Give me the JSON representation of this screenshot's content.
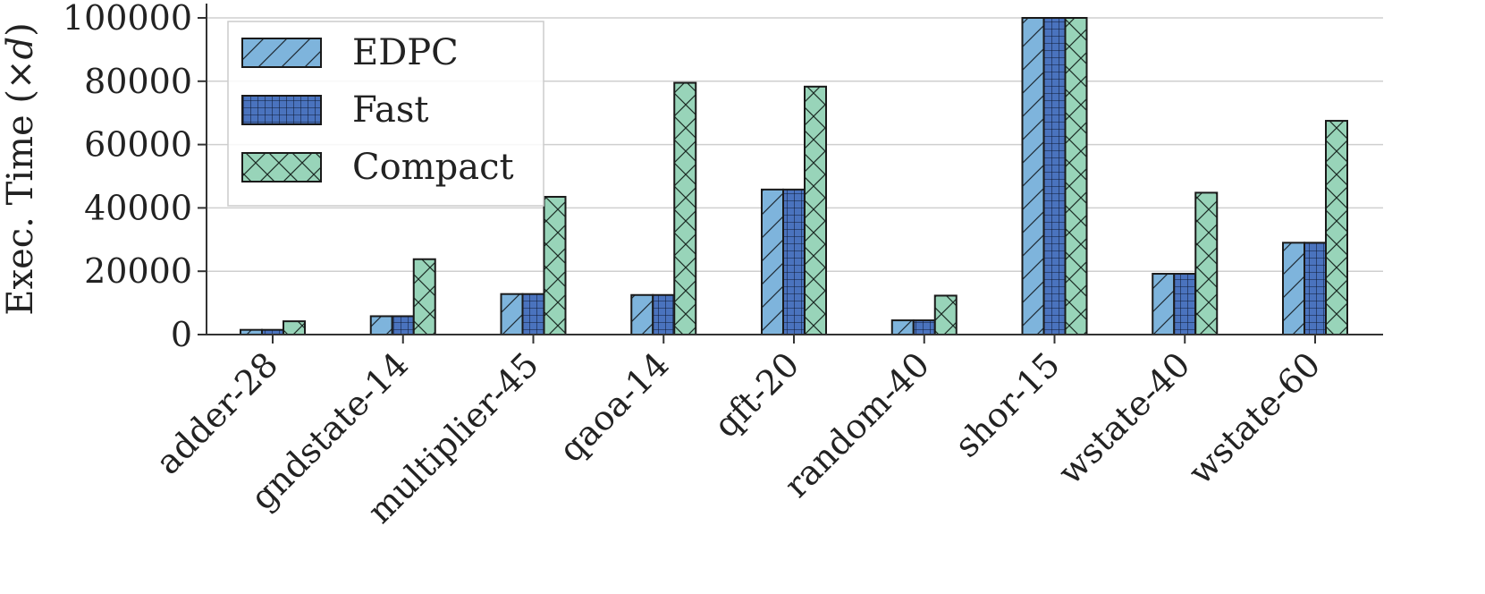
{
  "chart_data": {
    "type": "bar",
    "ylabel_prefix": "Exec. Time (×",
    "ylabel_var": "d",
    "ylabel_suffix": ")",
    "xlabel": "",
    "ylim": [
      0,
      100000
    ],
    "yticks": [
      0,
      20000,
      40000,
      60000,
      80000,
      100000
    ],
    "ytick_labels": [
      "0",
      "20000",
      "40000",
      "60000",
      "80000",
      "100000"
    ],
    "grid": true,
    "legend_position": "top-left",
    "categories": [
      "adder-28",
      "gndstate-14",
      "multiplier-45",
      "qaoa-14",
      "qft-20",
      "random-40",
      "shor-15",
      "wstate-40",
      "wstate-60"
    ],
    "series": [
      {
        "name": "EDPC",
        "color": "#7eb4dc",
        "pattern": "diagonal-hatch",
        "values": [
          1500,
          5800,
          12800,
          12500,
          45800,
          4500,
          100000,
          19200,
          29000
        ]
      },
      {
        "name": "Fast",
        "color": "#4a73be",
        "pattern": "grid-hatch",
        "values": [
          1500,
          5800,
          12800,
          12500,
          45800,
          4500,
          100000,
          19200,
          29000
        ]
      },
      {
        "name": "Compact",
        "color": "#98d4b9",
        "pattern": "cross-hatch",
        "values": [
          4200,
          23800,
          43500,
          79500,
          78300,
          12300,
          100000,
          44800,
          67500
        ]
      }
    ]
  }
}
